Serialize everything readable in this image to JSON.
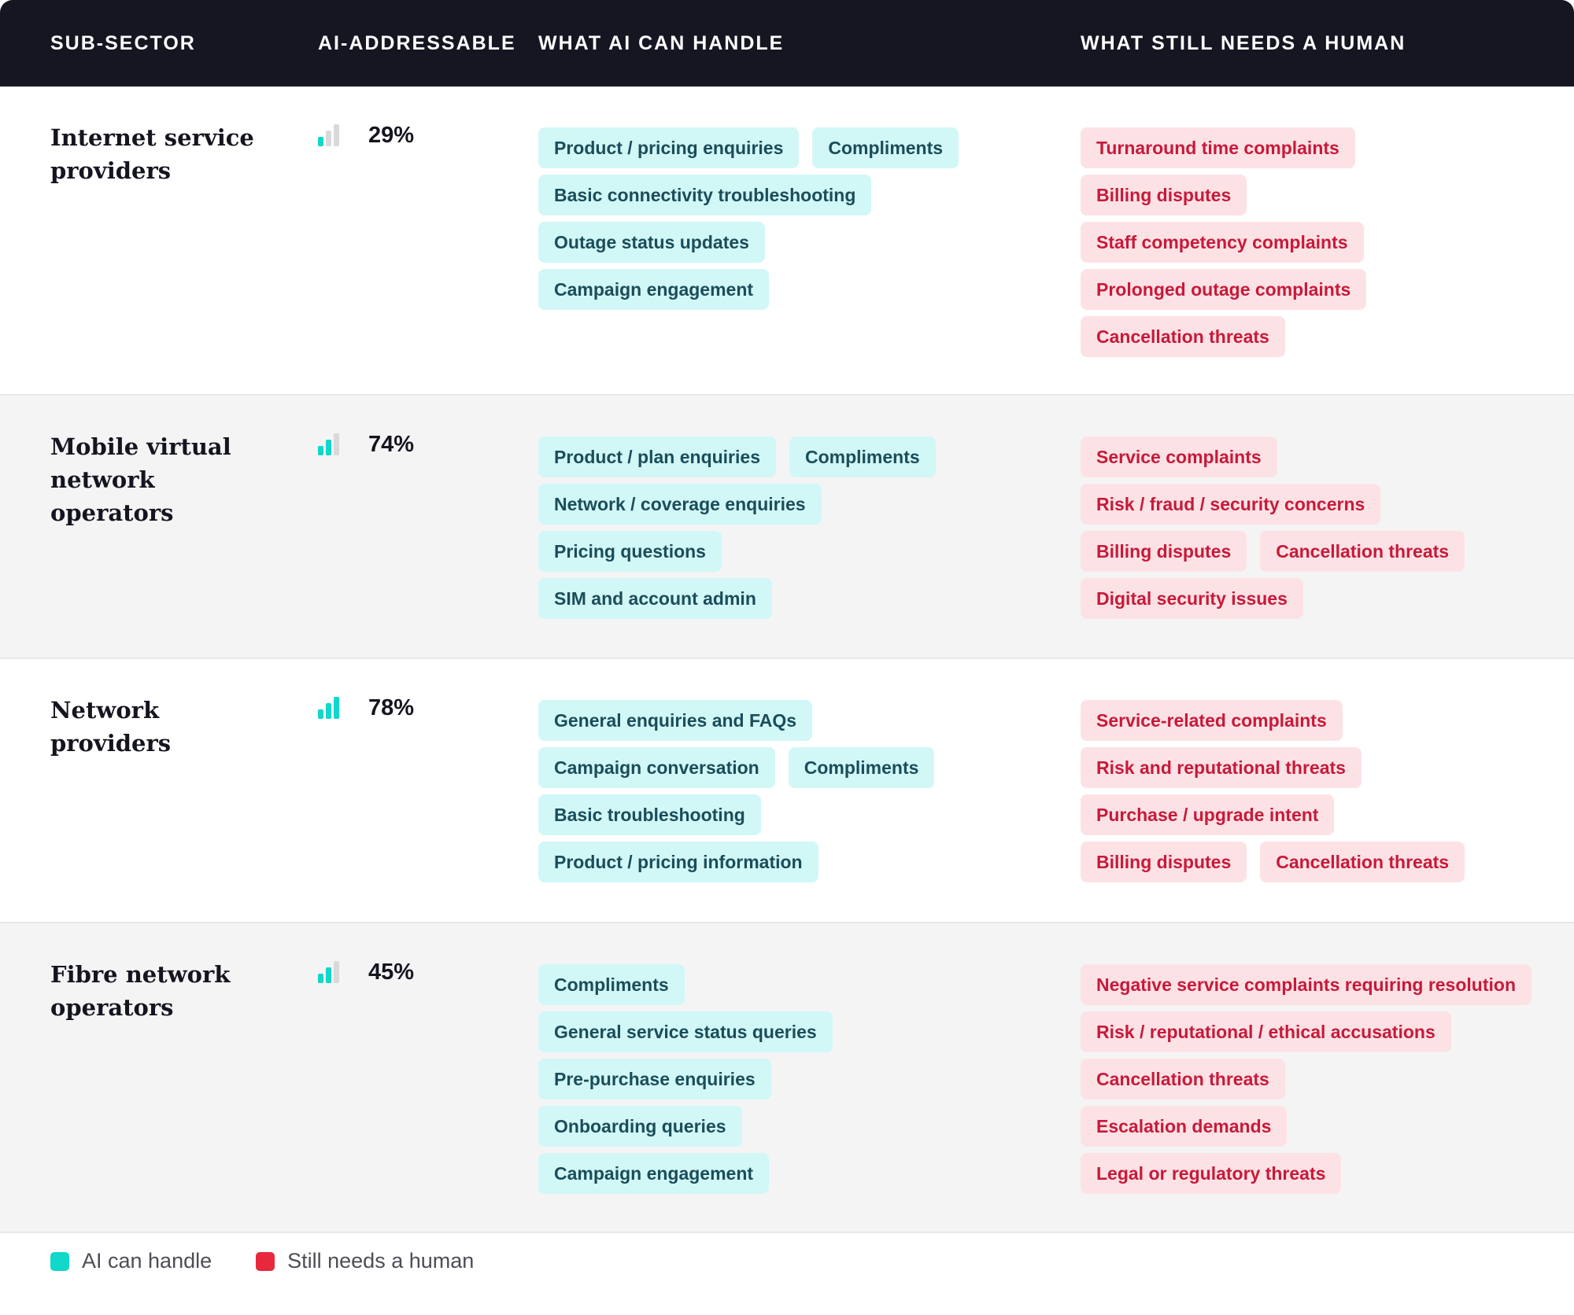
{
  "header": {
    "columns": [
      "SUB-SECTOR",
      "AI-ADDRESSABLE",
      "WHAT AI CAN HANDLE",
      "WHAT STILL NEEDS A HUMAN"
    ]
  },
  "colors": {
    "header_bg": "#151622",
    "ai_accent": "#12d7cb",
    "ai_pill_bg": "#d2f7f7",
    "ai_pill_text": "#1a4d5a",
    "human_accent": "#e8283c",
    "human_pill_bg": "#fde2e5",
    "human_pill_text": "#c8193a"
  },
  "rows": [
    {
      "name": "Internet service providers",
      "percent": "29%",
      "bars_filled": 1,
      "ai": [
        [
          "Product / pricing enquiries",
          "Compliments"
        ],
        [
          "Basic connectivity troubleshooting"
        ],
        [
          "Outage status updates"
        ],
        [
          "Campaign engagement"
        ]
      ],
      "human": [
        [
          "Turnaround time complaints"
        ],
        [
          "Billing disputes"
        ],
        [
          "Staff competency complaints"
        ],
        [
          "Prolonged outage complaints"
        ],
        [
          "Cancellation threats"
        ]
      ]
    },
    {
      "name": "Mobile virtual network operators",
      "percent": "74%",
      "bars_filled": 2,
      "ai": [
        [
          "Product / plan enquiries",
          "Compliments"
        ],
        [
          "Network / coverage enquiries"
        ],
        [
          "Pricing questions"
        ],
        [
          "SIM and account admin"
        ]
      ],
      "human": [
        [
          "Service complaints"
        ],
        [
          "Risk / fraud / security concerns"
        ],
        [
          "Billing disputes",
          "Cancellation threats"
        ],
        [
          "Digital security issues"
        ]
      ]
    },
    {
      "name": "Network providers",
      "percent": "78%",
      "bars_filled": 3,
      "ai": [
        [
          "General enquiries and FAQs"
        ],
        [
          "Campaign conversation",
          "Compliments"
        ],
        [
          "Basic troubleshooting"
        ],
        [
          "Product / pricing information"
        ]
      ],
      "human": [
        [
          "Service-related complaints"
        ],
        [
          "Risk and reputational threats"
        ],
        [
          "Purchase / upgrade intent"
        ],
        [
          "Billing disputes",
          "Cancellation threats"
        ]
      ]
    },
    {
      "name": "Fibre network operators",
      "percent": "45%",
      "bars_filled": 2,
      "ai": [
        [
          "Compliments"
        ],
        [
          "General service status queries"
        ],
        [
          "Pre-purchase enquiries"
        ],
        [
          "Onboarding queries"
        ],
        [
          "Campaign engagement"
        ]
      ],
      "human": [
        [
          "Negative service complaints requiring resolution"
        ],
        [
          "Risk / reputational / ethical accusations"
        ],
        [
          "Cancellation threats"
        ],
        [
          "Escalation demands"
        ],
        [
          "Legal or regulatory threats"
        ]
      ]
    }
  ],
  "legend": {
    "ai_label": "AI can handle",
    "human_label": "Still needs a human"
  }
}
